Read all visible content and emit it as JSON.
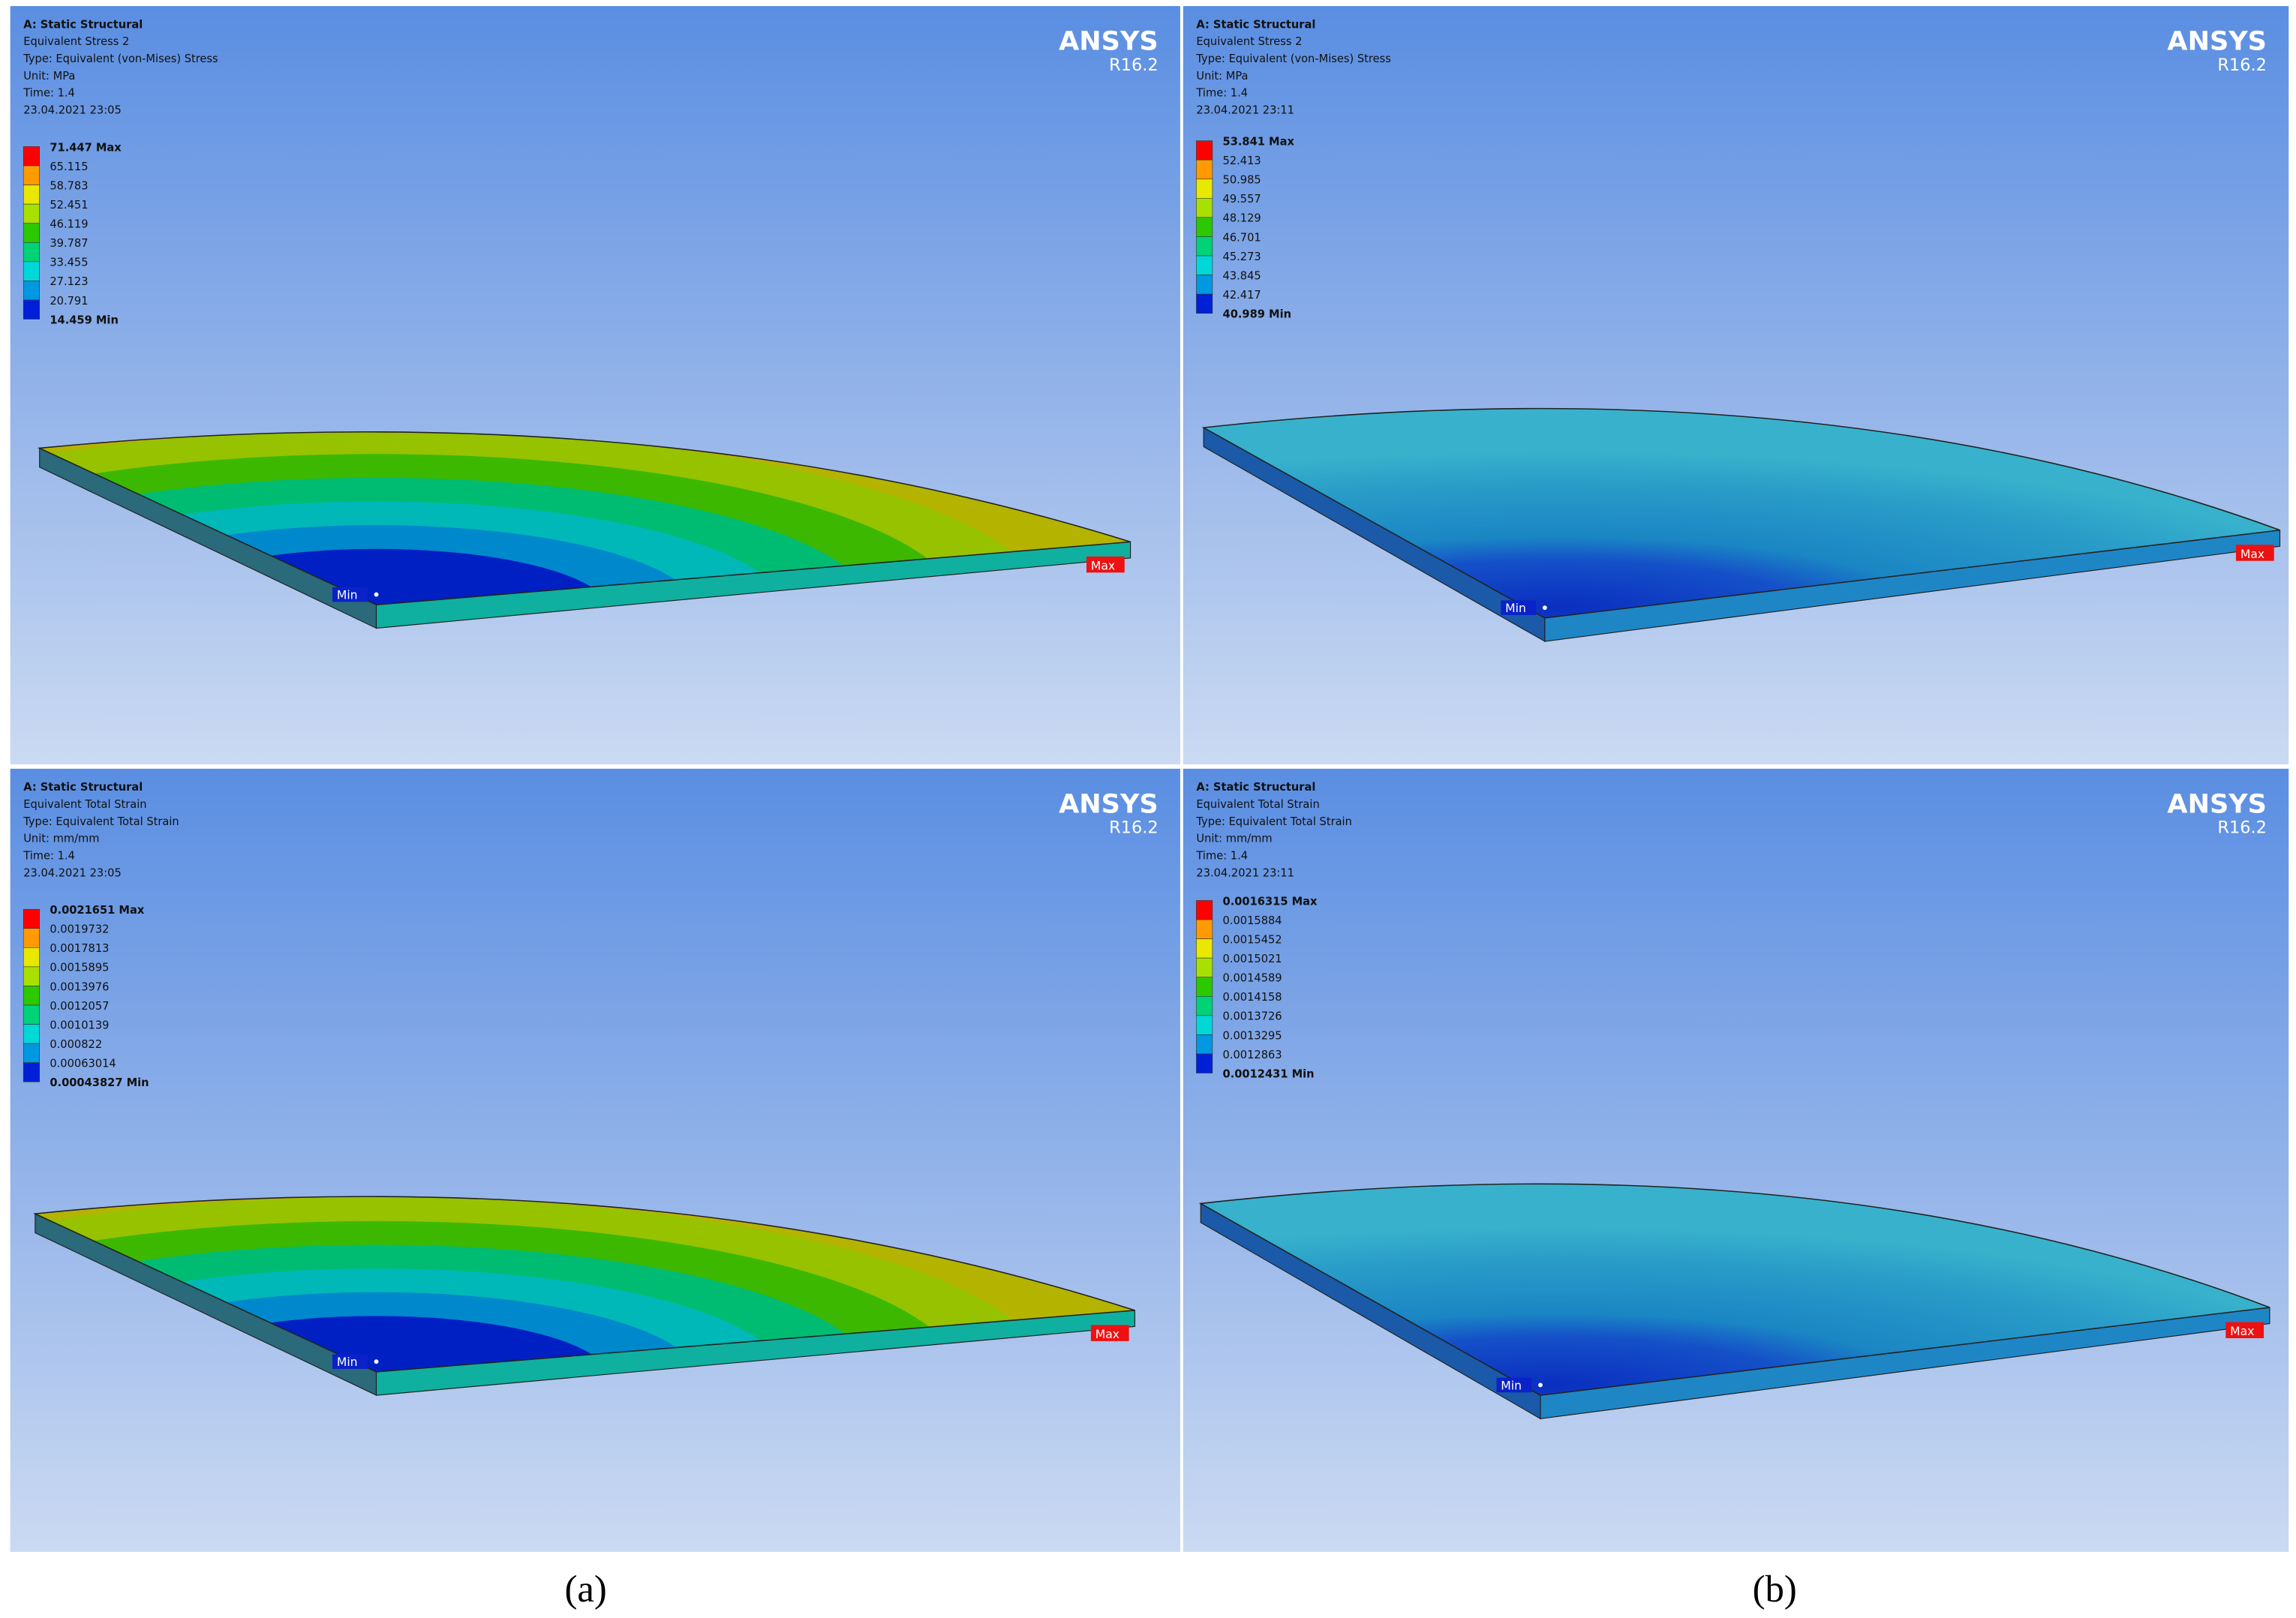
{
  "panels": [
    {
      "header_lines": [
        "A: Static Structural",
        "Equivalent Stress 2",
        "Type: Equivalent (von-Mises) Stress",
        "Unit: MPa",
        "Time: 1.4",
        "23.04.2021 23:05"
      ],
      "legend": [
        "71.447 Max",
        "65.115",
        "58.783",
        "52.451",
        "46.119",
        "39.787",
        "33.455",
        "27.123",
        "20.791",
        "14.459 Min"
      ],
      "brand": "ANSYS",
      "version": "R16.2",
      "min_label": "Min",
      "max_label": "Max"
    },
    {
      "header_lines": [
        "A: Static Structural",
        "Equivalent Stress 2",
        "Type: Equivalent (von-Mises) Stress",
        "Unit: MPa",
        "Time: 1.4",
        "23.04.2021 23:11"
      ],
      "legend": [
        "53.841 Max",
        "52.413",
        "50.985",
        "49.557",
        "48.129",
        "46.701",
        "45.273",
        "43.845",
        "42.417",
        "40.989 Min"
      ],
      "brand": "ANSYS",
      "version": "R16.2",
      "min_label": "Min",
      "max_label": "Max"
    },
    {
      "header_lines": [
        "A: Static Structural",
        "Equivalent Total Strain",
        "Type: Equivalent Total Strain",
        "Unit: mm/mm",
        "Time: 1.4",
        "23.04.2021 23:05"
      ],
      "legend": [
        "0.0021651 Max",
        "0.0019732",
        "0.0017813",
        "0.0015895",
        "0.0013976",
        "0.0012057",
        "0.0010139",
        "0.000822",
        "0.00063014",
        "0.00043827 Min"
      ],
      "brand": "ANSYS",
      "version": "R16.2",
      "min_label": "Min",
      "max_label": "Max"
    },
    {
      "header_lines": [
        "A: Static Structural",
        "Equivalent Total Strain",
        "Type: Equivalent Total Strain",
        "Unit: mm/mm",
        "Time: 1.4",
        "23.04.2021 23:11"
      ],
      "legend": [
        "0.0016315 Max",
        "0.0015884",
        "0.0015452",
        "0.0015021",
        "0.0014589",
        "0.0014158",
        "0.0013726",
        "0.0013295",
        "0.0012863",
        "0.0012431 Min"
      ],
      "brand": "ANSYS",
      "version": "R16.2",
      "min_label": "Min",
      "max_label": "Max"
    }
  ],
  "captions": [
    "(a)",
    "(b)"
  ]
}
